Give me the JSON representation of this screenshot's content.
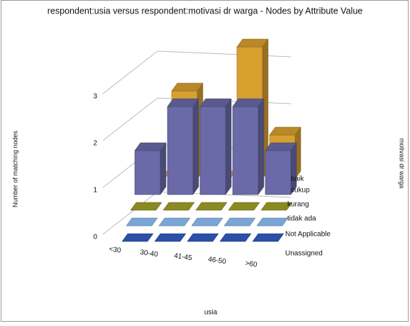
{
  "chart_data": {
    "type": "bar3d",
    "title": "respondent:usia versus respondent:motivasi dr warga - Nodes by Attribute Value",
    "x_label": "usia",
    "y_label": "Number of matching nodes",
    "z_label": "motivasi dr warga",
    "categories": [
      "<30",
      "30-40",
      "41-45",
      "46-50",
      ">60"
    ],
    "series": [
      {
        "name": "baik",
        "color": "#d9a030",
        "values": [
          0,
          2,
          0,
          3,
          1
        ]
      },
      {
        "name": "cukup",
        "color": "#6a6aa8",
        "values": [
          1,
          2,
          2,
          2,
          1
        ]
      },
      {
        "name": "kurang",
        "color": "#8a8a22",
        "values": [
          0,
          0,
          0,
          0,
          0
        ]
      },
      {
        "name": "tidak ada",
        "color": "#7aa6d6",
        "values": [
          0,
          0,
          0,
          0,
          0
        ]
      },
      {
        "name": "Not Applicable",
        "color": "#2a50a8",
        "values": [
          0,
          0,
          0,
          0,
          0
        ]
      },
      {
        "name": "Unassigned",
        "color": "#2a50a8",
        "values": [
          null,
          null,
          null,
          null,
          null
        ]
      }
    ],
    "ylim": [
      0,
      3
    ],
    "yticks": [
      0,
      1,
      2,
      3
    ],
    "grid": true
  }
}
